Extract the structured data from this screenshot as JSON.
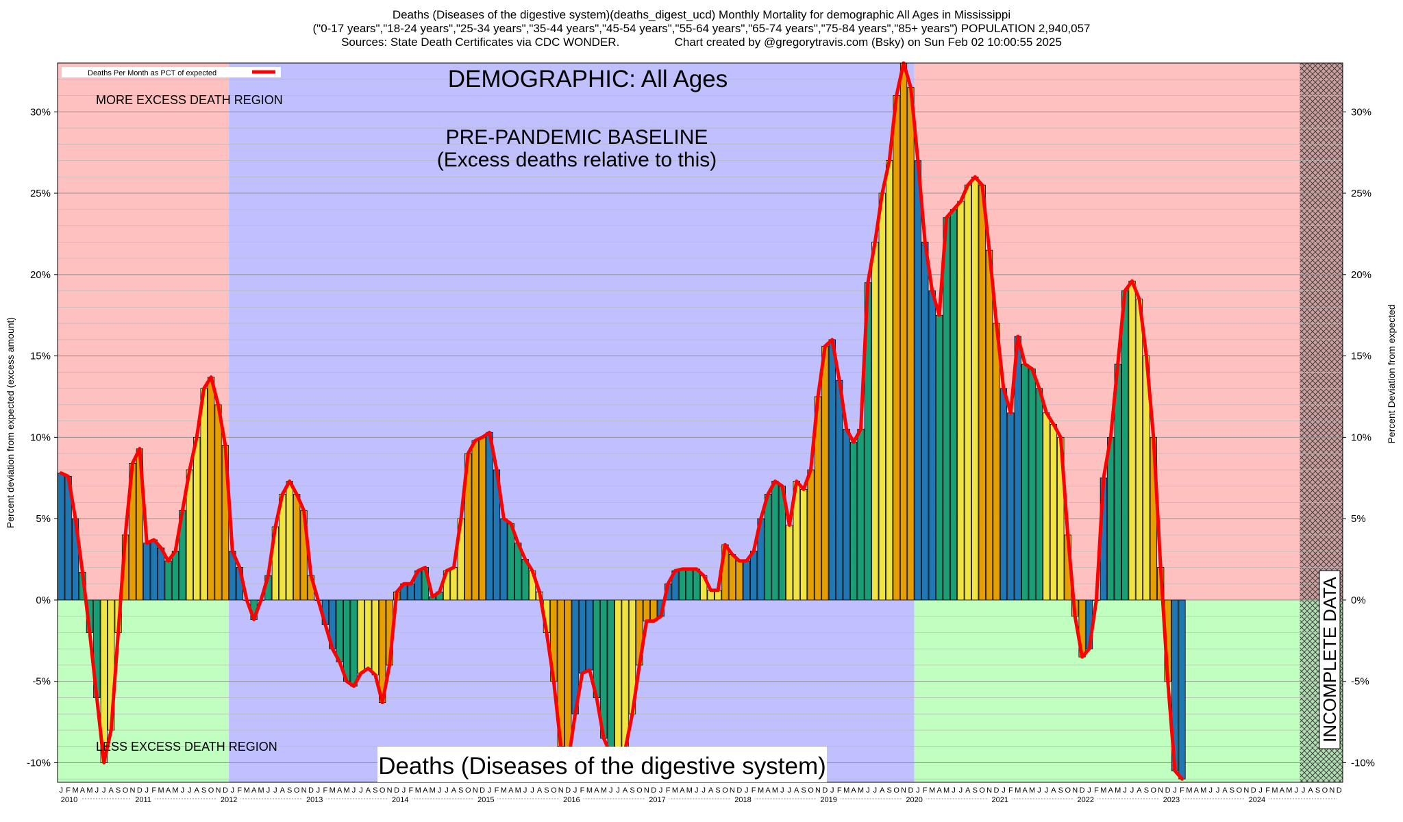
{
  "header": {
    "line1": "Deaths (Diseases of the digestive system)(deaths_digest_ucd) Monthly Mortality for demographic All Ages in Mississippi",
    "line2": "(\"0-17 years\",\"18-24 years\",\"25-34 years\",\"35-44 years\",\"45-54 years\",\"55-64 years\",\"65-74 years\",\"75-84 years\",\"85+ years\") POPULATION 2,940,057",
    "line3": "Sources: State Death Certificates via CDC WONDER.                 Chart created by @gregorytravis.com (Bsky) on Sun Feb 02 10:00:55 2025"
  },
  "chart_data": {
    "type": "bar",
    "title": "DEMOGRAPHIC: All Ages",
    "bottom_label": "Deaths (Diseases of the digestive system)",
    "ylabel_left": "Percent deviation from expected (excess amount)",
    "ylabel_right": "Percent Deviation from expected",
    "legend_label": "Deaths Per Month as PCT of expected",
    "legend_position": "top-left",
    "ylim": [
      -11.2,
      33
    ],
    "yticks": [
      -10,
      -5,
      0,
      5,
      10,
      15,
      20,
      25,
      30
    ],
    "ytick_labels": [
      "-10%",
      "-5%",
      "0%",
      "5%",
      "10%",
      "15%",
      "20%",
      "25%",
      "30%"
    ],
    "x_start": "2010-01",
    "years": [
      "2010",
      "2011",
      "2012",
      "2013",
      "2014",
      "2015",
      "2016",
      "2017",
      "2018",
      "2019",
      "2020",
      "2021",
      "2022",
      "2023",
      "2024"
    ],
    "month_letters": [
      "J",
      "F",
      "M",
      "A",
      "M",
      "J",
      "J",
      "A",
      "S",
      "O",
      "N",
      "D"
    ],
    "season_colors": [
      "#1f77b4",
      "#1a9e76",
      "#f0e442",
      "#e69f00"
    ],
    "line_color": "#ff0000",
    "regions": {
      "excess_label": "MORE EXCESS DEATH REGION",
      "less_label": "LESS EXCESS DEATH REGION",
      "baseline_label_1": "PRE-PANDEMIC BASELINE",
      "baseline_label_2": "(Excess deaths relative to this)",
      "incomplete_label": "INCOMPLETE DATA",
      "baseline_start": "2012-01",
      "baseline_end": "2019-12",
      "incomplete_start": "2024-07",
      "colors": {
        "excess": "#ffc0c0",
        "less": "#c0ffc0",
        "baseline": "#c0c0ff"
      }
    },
    "values": [
      7.8,
      7.6,
      5.0,
      1.7,
      -2.0,
      -6.0,
      -10.0,
      -8.0,
      -2.0,
      4.0,
      8.4,
      9.3,
      3.5,
      3.7,
      3.2,
      2.4,
      3.0,
      5.5,
      8.0,
      10.0,
      13.0,
      13.7,
      12.0,
      9.5,
      3.0,
      2.0,
      0.0,
      -1.2,
      0.0,
      1.5,
      4.5,
      6.5,
      7.3,
      6.5,
      5.5,
      1.5,
      0.0,
      -1.5,
      -3.0,
      -3.8,
      -5.0,
      -5.3,
      -4.5,
      -4.2,
      -4.6,
      -6.3,
      -4.0,
      0.5,
      1.0,
      1.0,
      1.8,
      2.0,
      0.2,
      0.5,
      1.8,
      2.0,
      5.0,
      9.0,
      9.8,
      10.0,
      10.3,
      8.0,
      5.0,
      4.7,
      3.5,
      2.5,
      1.8,
      0.5,
      -2.0,
      -5.0,
      -9.0,
      -10.0,
      -7.0,
      -4.5,
      -4.3,
      -6.0,
      -8.5,
      -9.5,
      -10.0,
      -9.2,
      -7.0,
      -4.0,
      -1.3,
      -1.3,
      -1.0,
      1.0,
      1.8,
      1.9,
      1.9,
      1.9,
      1.5,
      0.6,
      0.6,
      3.4,
      2.8,
      2.4,
      2.4,
      3.0,
      5.0,
      6.5,
      7.3,
      7.0,
      4.6,
      7.3,
      6.8,
      8.0,
      12.5,
      15.6,
      16.0,
      13.5,
      10.5,
      9.7,
      10.5,
      19.5,
      22.0,
      25.0,
      27.0,
      31.0,
      33.0,
      31.5,
      27.0,
      22.0,
      19.0,
      17.5,
      23.5,
      24.0,
      24.5,
      25.5,
      26.0,
      25.5,
      21.5,
      17.0,
      13.0,
      11.5,
      16.2,
      14.5,
      14.2,
      13.0,
      11.5,
      10.8,
      10.0,
      4.0,
      -1.0,
      -3.5,
      -3.0,
      0.0,
      7.5,
      10.0,
      14.5,
      19.0,
      19.6,
      18.5,
      15.0,
      10.0,
      2.0,
      -5.0,
      -10.5,
      -11.0
    ]
  }
}
